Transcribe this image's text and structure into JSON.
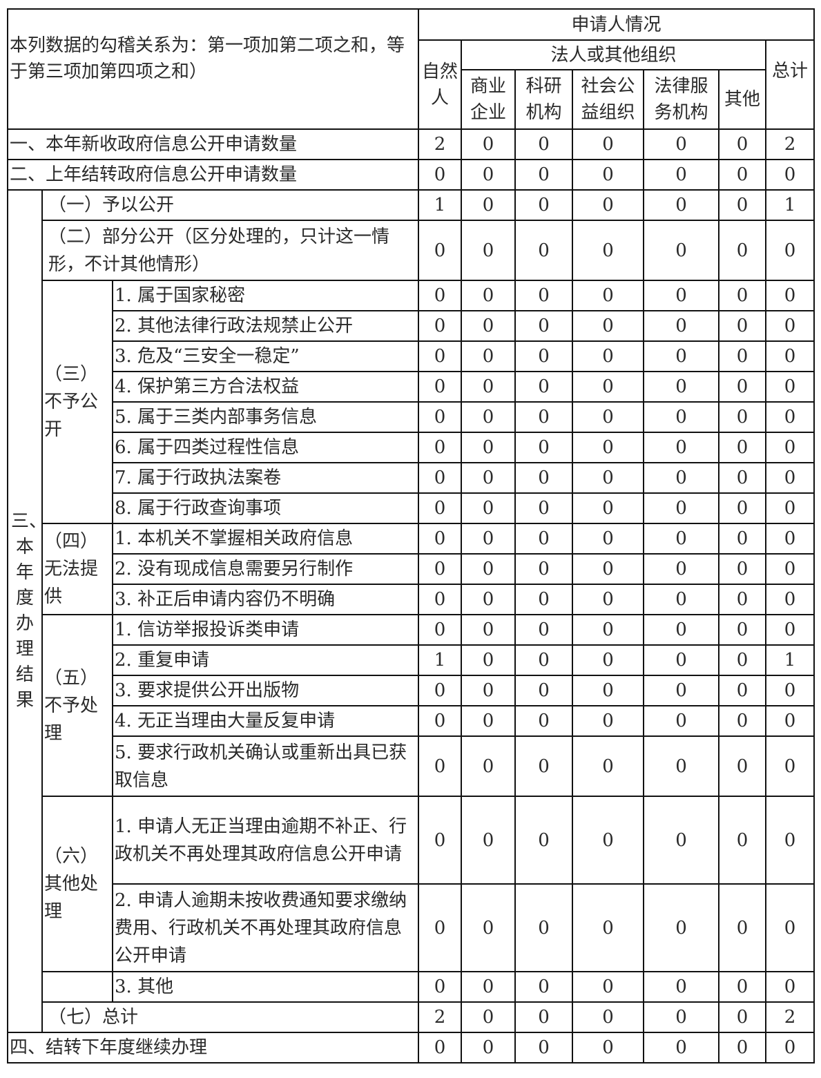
{
  "header": {
    "note": "本列数据的勾稽关系为：第一项加第二项之和，等于第三项加第四项之和）",
    "applicant": "申请人情况",
    "natural_person": "自然人",
    "legal_group": "法人或其他组织",
    "columns": [
      "商业企业",
      "科研机构",
      "社会公益组织",
      "法律服务机构",
      "其他"
    ],
    "total": "总计"
  },
  "section3_label": "三、本年度办理结果",
  "groups": {
    "g3": "（三）不予公开",
    "g4": "（四）无法提供",
    "g5": "（五）不予处理",
    "g6": "（六）其他处理"
  },
  "rows": [
    {
      "label": "一、本年新收政府信息公开申请数量",
      "values": [
        2,
        0,
        0,
        0,
        0,
        0,
        2
      ]
    },
    {
      "label": "二、上年结转政府信息公开申请数量",
      "values": [
        0,
        0,
        0,
        0,
        0,
        0,
        0
      ]
    },
    {
      "label": "（一）予以公开",
      "values": [
        1,
        0,
        0,
        0,
        0,
        0,
        1
      ]
    },
    {
      "label": "（二）部分公开（区分处理的，只计这一情形，不计其他情形）",
      "values": [
        0,
        0,
        0,
        0,
        0,
        0,
        0
      ]
    },
    {
      "label": "1. 属于国家秘密",
      "values": [
        0,
        0,
        0,
        0,
        0,
        0,
        0
      ]
    },
    {
      "label": "2. 其他法律行政法规禁止公开",
      "values": [
        0,
        0,
        0,
        0,
        0,
        0,
        0
      ]
    },
    {
      "label": "3. 危及“三安全一稳定”",
      "values": [
        0,
        0,
        0,
        0,
        0,
        0,
        0
      ]
    },
    {
      "label": "4. 保护第三方合法权益",
      "values": [
        0,
        0,
        0,
        0,
        0,
        0,
        0
      ]
    },
    {
      "label": "5. 属于三类内部事务信息",
      "values": [
        0,
        0,
        0,
        0,
        0,
        0,
        0
      ]
    },
    {
      "label": "6. 属于四类过程性信息",
      "values": [
        0,
        0,
        0,
        0,
        0,
        0,
        0
      ]
    },
    {
      "label": "7. 属于行政执法案卷",
      "values": [
        0,
        0,
        0,
        0,
        0,
        0,
        0
      ]
    },
    {
      "label": "8. 属于行政查询事项",
      "values": [
        0,
        0,
        0,
        0,
        0,
        0,
        0
      ]
    },
    {
      "label": "1. 本机关不掌握相关政府信息",
      "values": [
        0,
        0,
        0,
        0,
        0,
        0,
        0
      ]
    },
    {
      "label": "2. 没有现成信息需要另行制作",
      "values": [
        0,
        0,
        0,
        0,
        0,
        0,
        0
      ]
    },
    {
      "label": "3. 补正后申请内容仍不明确",
      "values": [
        0,
        0,
        0,
        0,
        0,
        0,
        0
      ]
    },
    {
      "label": "1. 信访举报投诉类申请",
      "values": [
        0,
        0,
        0,
        0,
        0,
        0,
        0
      ]
    },
    {
      "label": "2. 重复申请",
      "values": [
        1,
        0,
        0,
        0,
        0,
        0,
        1
      ]
    },
    {
      "label": "3. 要求提供公开出版物",
      "values": [
        0,
        0,
        0,
        0,
        0,
        0,
        0
      ]
    },
    {
      "label": "4. 无正当理由大量反复申请",
      "values": [
        0,
        0,
        0,
        0,
        0,
        0,
        0
      ]
    },
    {
      "label": "5. 要求行政机关确认或重新出具已获取信息",
      "values": [
        0,
        0,
        0,
        0,
        0,
        0,
        0
      ]
    },
    {
      "label": "1. 申请人无正当理由逾期不补正、行政机关不再处理其政府信息公开申请",
      "values": [
        0,
        0,
        0,
        0,
        0,
        0,
        0
      ]
    },
    {
      "label": "2. 申请人逾期未按收费通知要求缴纳费用、行政机关不再处理其政府信息公开申请",
      "values": [
        0,
        0,
        0,
        0,
        0,
        0,
        0
      ]
    },
    {
      "label": "3. 其他",
      "values": [
        0,
        0,
        0,
        0,
        0,
        0,
        0
      ]
    },
    {
      "label": "（七）总计",
      "values": [
        2,
        0,
        0,
        0,
        0,
        0,
        2
      ]
    },
    {
      "label": "四、结转下年度继续办理",
      "values": [
        0,
        0,
        0,
        0,
        0,
        0,
        0
      ]
    }
  ]
}
